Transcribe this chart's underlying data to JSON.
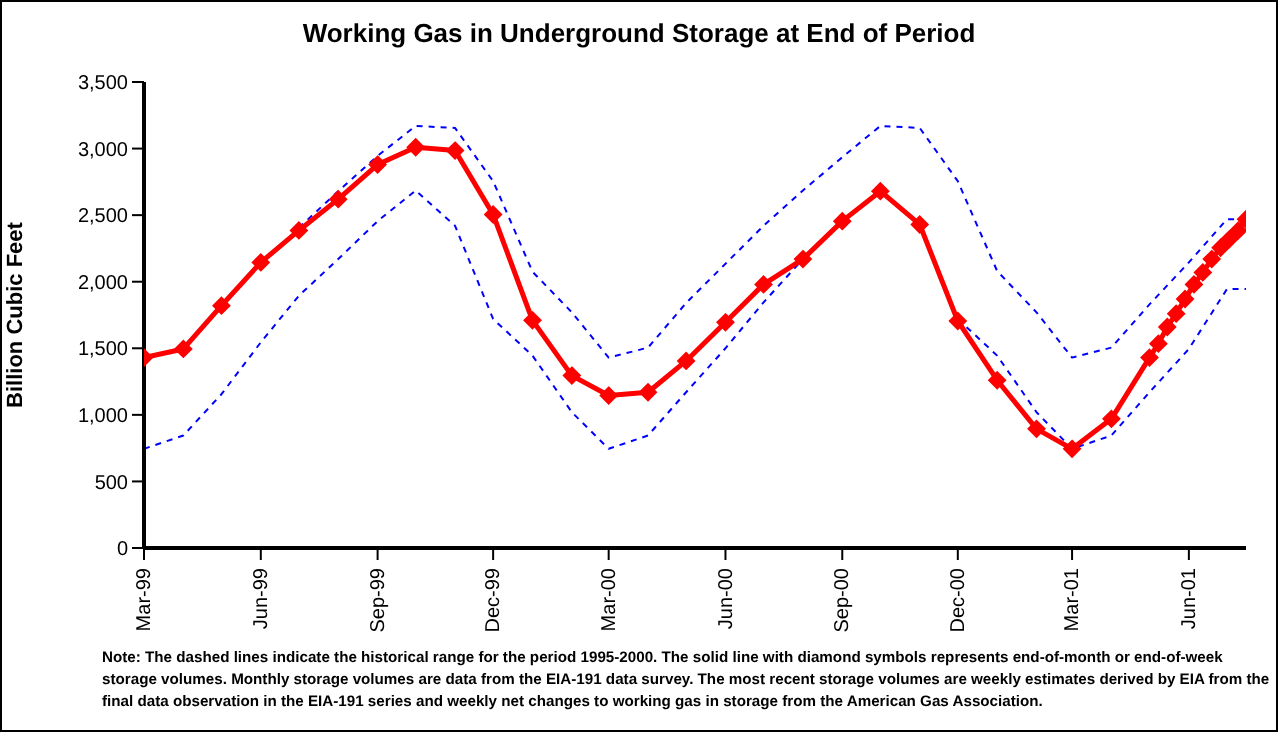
{
  "chart_data": {
    "type": "line",
    "title": "Working Gas in Underground Storage at End of Period",
    "ylabel": "Billion Cubic Feet",
    "annotations": [
      "Note: The dashed lines indicate the historical range for the period 1995-2000.  The solid line with diamond symbols represents end-of-month or end-of-week storage volumes.  Monthly storage volumes are data from the EIA-191 data survey.  The most recent storage volumes are weekly estimates derived by EIA from the final data observation in the EIA-191 series and weekly net changes to working gas in storage from the American Gas Association."
    ],
    "xlim": [
      "1999-03-01",
      "2001-07-16"
    ],
    "xticks": [
      {
        "value": "1999-03-01",
        "label": "Mar-99"
      },
      {
        "value": "1999-06-01",
        "label": "Jun-99"
      },
      {
        "value": "1999-09-01",
        "label": "Sep-99"
      },
      {
        "value": "1999-12-01",
        "label": "Dec-99"
      },
      {
        "value": "2000-03-01",
        "label": "Mar-00"
      },
      {
        "value": "2000-06-01",
        "label": "Jun-00"
      },
      {
        "value": "2000-09-01",
        "label": "Sep-00"
      },
      {
        "value": "2000-12-01",
        "label": "Dec-00"
      },
      {
        "value": "2001-03-01",
        "label": "Mar-01"
      },
      {
        "value": "2001-06-01",
        "label": "Jun-01"
      }
    ],
    "ylim": [
      0,
      3500
    ],
    "yticks": [
      0,
      {
        "value": 500,
        "label": "500"
      },
      {
        "value": 1000,
        "label": "1,000"
      },
      {
        "value": 1500,
        "label": "1,500"
      },
      {
        "value": 2000,
        "label": "2,000"
      },
      {
        "value": 2500,
        "label": "2,500"
      },
      {
        "value": 3000,
        "label": "3,000"
      },
      {
        "value": 3500,
        "label": "3,500"
      }
    ],
    "series": [
      {
        "color": "#0000ff",
        "line_style": "dashed",
        "marker": "none",
        "x": [
          "1999-07-01",
          "1999-08-01",
          "1999-09-01",
          "1999-10-01",
          "1999-11-01",
          "1999-12-01",
          "2000-01-01",
          "2000-02-01",
          "2000-03-01",
          "2000-04-01",
          "2000-05-01",
          "2000-06-01",
          "2000-07-01",
          "2000-08-01",
          "2000-09-01",
          "2000-10-01",
          "2000-11-01",
          "2000-12-01",
          "2001-01-01",
          "2001-02-01",
          "2001-03-01",
          "2001-04-01",
          "2001-05-01",
          "2001-06-01",
          "2001-07-01",
          "2001-07-16"
        ],
        "values": [
          2405,
          2680,
          2945,
          3170,
          3155,
          2755,
          2075,
          1770,
          1430,
          1505,
          1840,
          2135,
          2420,
          2685,
          2935,
          3170,
          3155,
          2755,
          2080,
          1770,
          1430,
          1505,
          1830,
          2145,
          2470,
          2470
        ]
      },
      {
        "color": "#0000ff",
        "line_style": "dashed",
        "marker": "none",
        "x": [
          "1999-03-01",
          "1999-04-01",
          "1999-05-01",
          "1999-06-01",
          "1999-07-01",
          "1999-08-01",
          "1999-09-01",
          "1999-10-01",
          "1999-11-01",
          "1999-12-01",
          "2000-01-01",
          "2000-02-01",
          "2000-03-01",
          "2000-04-01",
          "2000-05-01",
          "2000-06-01",
          "2000-07-01",
          "2000-08-01",
          "2000-09-01",
          "2000-10-01",
          "2000-11-01",
          "2000-12-01",
          "2001-01-01",
          "2001-02-01",
          "2001-03-01",
          "2001-04-01",
          "2001-05-01",
          "2001-06-01",
          "2001-07-01",
          "2001-07-16"
        ],
        "values": [
          745,
          845,
          1155,
          1545,
          1895,
          2170,
          2455,
          2685,
          2420,
          1720,
          1445,
          1020,
          745,
          845,
          1170,
          1500,
          1845,
          2170,
          null,
          null,
          null,
          1720,
          1445,
          1020,
          745,
          845,
          1170,
          1495,
          1945,
          1945
        ]
      },
      {
        "color": "#ff0000",
        "line_style": "solid",
        "marker": "diamond",
        "x": [
          "1999-03-01",
          "1999-04-01",
          "1999-05-01",
          "1999-06-01",
          "1999-07-01",
          "1999-08-01",
          "1999-09-01",
          "1999-10-01",
          "1999-11-01",
          "1999-12-01",
          "2000-01-01",
          "2000-02-01",
          "2000-03-01",
          "2000-04-01",
          "2000-05-01",
          "2000-06-01",
          "2000-07-01",
          "2000-08-01",
          "2000-09-01",
          "2000-10-01",
          "2000-11-01",
          "2000-12-01",
          "2001-01-01",
          "2001-02-01",
          "2001-03-01",
          "2001-04-01",
          "2001-05-01",
          "2001-05-08",
          "2001-05-15",
          "2001-05-22",
          "2001-05-29",
          "2001-06-05",
          "2001-06-12",
          "2001-06-19",
          "2001-06-26",
          "2001-07-03",
          "2001-07-10",
          "2001-07-16"
        ],
        "values": [
          1430,
          1495,
          1820,
          2145,
          2385,
          2620,
          2880,
          3010,
          2985,
          2505,
          1710,
          1295,
          1145,
          1170,
          1405,
          1695,
          1980,
          2170,
          2455,
          2680,
          2430,
          1705,
          1260,
          895,
          745,
          970,
          1430,
          1535,
          1660,
          1760,
          1870,
          1980,
          2070,
          2170,
          2255,
          2320,
          2385,
          2470
        ]
      }
    ]
  }
}
